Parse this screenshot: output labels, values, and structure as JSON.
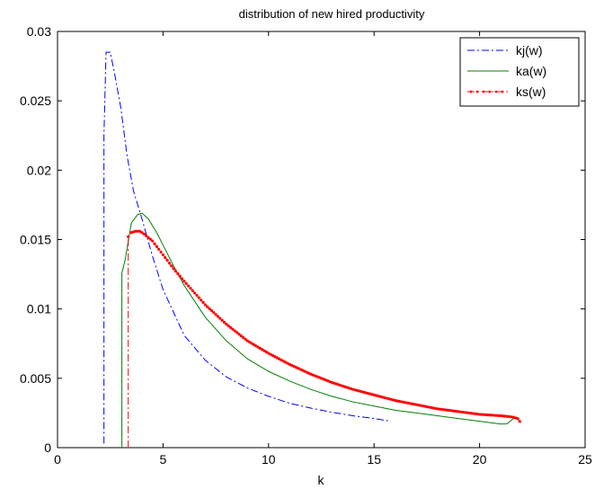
{
  "chart_data": {
    "type": "line",
    "title": "distribution of new hired productivity",
    "xlabel": "k",
    "ylabel": "",
    "xlim": [
      0,
      25
    ],
    "ylim": [
      0,
      0.03
    ],
    "xticks": [
      0,
      5,
      10,
      15,
      20,
      25
    ],
    "xtick_labels": [
      "0",
      "5",
      "10",
      "15",
      "20",
      "25"
    ],
    "yticks": [
      0,
      0.005,
      0.01,
      0.015,
      0.02,
      0.025,
      0.03
    ],
    "ytick_labels": [
      "0",
      "0.005",
      "0.01",
      "0.015",
      "0.02",
      "0.025",
      "0.03"
    ],
    "grid": false,
    "legend_position": "top-right",
    "series": [
      {
        "name": "kj(w)",
        "color": "#0000ff",
        "style": "dash-dot",
        "marker": "none",
        "x": [
          2.2,
          2.2,
          2.3,
          2.5,
          2.7,
          3.0,
          3.3,
          3.6,
          4.0,
          4.5,
          5.0,
          6.0,
          7.0,
          8.0,
          9.0,
          10.0,
          11.0,
          12.0,
          13.0,
          14.0,
          15.0,
          15.8
        ],
        "y": [
          0.0003,
          0.0225,
          0.0285,
          0.0285,
          0.027,
          0.0245,
          0.021,
          0.0185,
          0.0165,
          0.0138,
          0.0114,
          0.0081,
          0.0063,
          0.0051,
          0.0043,
          0.0037,
          0.0032,
          0.00285,
          0.00255,
          0.0023,
          0.0021,
          0.0019
        ]
      },
      {
        "name": "ka(w)",
        "color": "#008000",
        "style": "solid",
        "marker": "none",
        "x": [
          3.05,
          3.05,
          3.2,
          3.5,
          3.8,
          4.0,
          4.3,
          4.7,
          5.0,
          5.5,
          6.0,
          7.0,
          8.0,
          9.0,
          10.0,
          11.0,
          12.0,
          13.0,
          14.0,
          15.0,
          16.0,
          17.0,
          18.0,
          19.0,
          20.0,
          21.0,
          21.3,
          21.6,
          21.9
        ],
        "y": [
          0.0,
          0.0126,
          0.0135,
          0.0162,
          0.0168,
          0.0169,
          0.0165,
          0.0155,
          0.0146,
          0.0131,
          0.0117,
          0.0094,
          0.0077,
          0.0064,
          0.0055,
          0.0048,
          0.0042,
          0.0037,
          0.0033,
          0.003,
          0.0027,
          0.0025,
          0.0023,
          0.0021,
          0.0019,
          0.0017,
          0.00172,
          0.0021,
          0.0021
        ]
      },
      {
        "name": "ks(w)",
        "color": "#ff0000",
        "style": "dash-dot",
        "marker": "point",
        "x": [
          3.35,
          3.35,
          3.5,
          3.7,
          3.9,
          4.1,
          4.5,
          5.0,
          5.5,
          6.0,
          7.0,
          8.0,
          9.0,
          10.0,
          11.0,
          12.0,
          13.0,
          14.0,
          15.0,
          16.0,
          17.0,
          18.0,
          19.0,
          20.0,
          21.0,
          21.6,
          21.8,
          22.0
        ],
        "y": [
          0.0,
          0.0152,
          0.0155,
          0.0156,
          0.0156,
          0.0154,
          0.0149,
          0.0139,
          0.0129,
          0.012,
          0.0103,
          0.0089,
          0.0077,
          0.0068,
          0.006,
          0.0053,
          0.0047,
          0.0042,
          0.0038,
          0.0034,
          0.0031,
          0.0028,
          0.0026,
          0.0024,
          0.0023,
          0.0022,
          0.0021,
          0.0017
        ]
      }
    ]
  }
}
